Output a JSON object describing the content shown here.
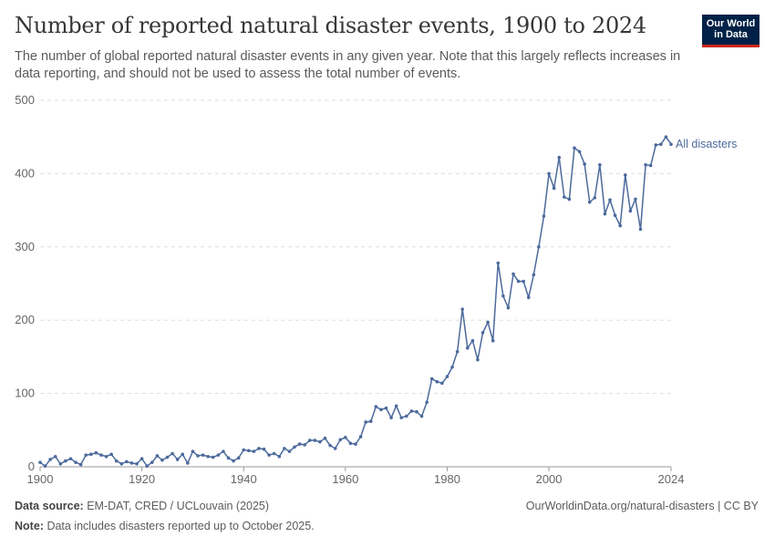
{
  "header": {
    "title": "Number of reported natural disaster events, 1900 to 2024",
    "subtitle": "The number of global reported natural disaster events in any given year. Note that this largely reflects increases in data reporting, and should not be used to assess the total number of events.",
    "logo": "Our World in Data"
  },
  "footer": {
    "source_label": "Data source:",
    "source": "EM-DAT, CRED / UCLouvain (2025)",
    "note_label": "Note:",
    "note": "Data includes disasters reported up to October 2025.",
    "url": "OurWorldinData.org/natural-disasters | CC BY"
  },
  "chart_data": {
    "type": "line",
    "title": "Number of reported natural disaster events, 1900 to 2024",
    "xlabel": "",
    "ylabel": "",
    "xlim": [
      1900,
      2024
    ],
    "ylim": [
      0,
      500
    ],
    "xticks": [
      "1900",
      "1920",
      "1940",
      "1960",
      "1980",
      "2000",
      "2024"
    ],
    "yticks": [
      "0",
      "100",
      "200",
      "300",
      "400",
      "500"
    ],
    "grid": true,
    "color": "#4c6a9c",
    "series": [
      {
        "name": "All disasters",
        "x_start": 1900,
        "values": [
          6,
          1,
          10,
          14,
          4,
          8,
          11,
          6,
          3,
          16,
          17,
          19,
          16,
          14,
          17,
          8,
          4,
          7,
          5,
          4,
          11,
          1,
          6,
          15,
          9,
          13,
          18,
          10,
          17,
          5,
          21,
          15,
          16,
          14,
          13,
          16,
          21,
          12,
          8,
          12,
          23,
          22,
          21,
          25,
          24,
          16,
          18,
          14,
          25,
          21,
          27,
          31,
          30,
          36,
          36,
          34,
          39,
          29,
          25,
          37,
          40,
          32,
          31,
          41,
          61,
          62,
          82,
          78,
          80,
          67,
          83,
          67,
          69,
          76,
          75,
          69,
          88,
          120,
          116,
          114,
          123,
          136,
          157,
          215,
          162,
          172,
          146,
          183,
          197,
          172,
          278,
          233,
          217,
          263,
          253,
          253,
          231,
          262,
          300,
          342,
          400,
          380,
          422,
          368,
          365,
          435,
          430,
          413,
          361,
          367,
          412,
          345,
          364,
          343,
          329,
          398,
          349,
          365,
          324,
          412,
          411,
          439,
          440,
          450,
          440
        ]
      }
    ]
  }
}
